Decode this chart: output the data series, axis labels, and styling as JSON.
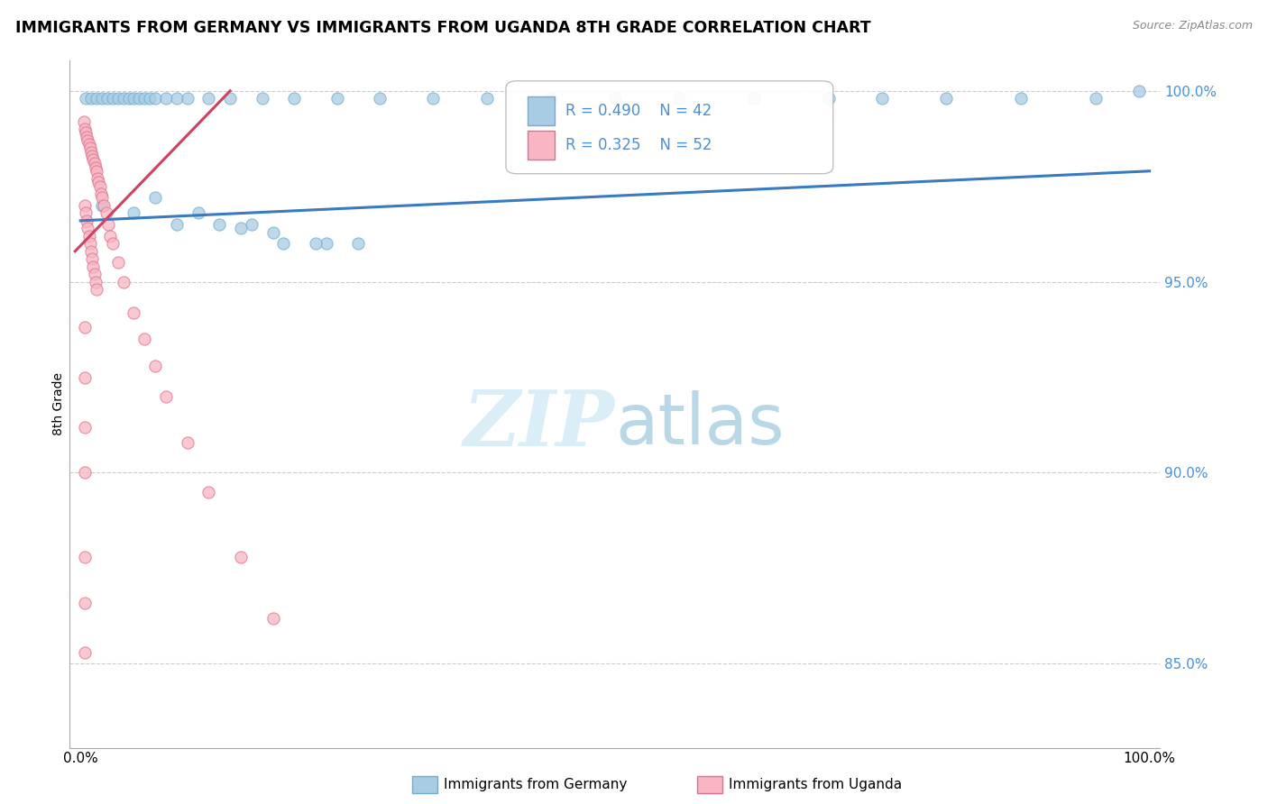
{
  "title": "IMMIGRANTS FROM GERMANY VS IMMIGRANTS FROM UGANDA 8TH GRADE CORRELATION CHART",
  "source": "Source: ZipAtlas.com",
  "ylabel": "8th Grade",
  "R_blue": 0.49,
  "N_blue": 42,
  "R_pink": 0.325,
  "N_pink": 52,
  "blue_color": "#a8cce4",
  "blue_edge_color": "#6aaed6",
  "pink_color": "#f7b6c2",
  "pink_edge_color": "#e07090",
  "blue_line_color": "#3a7abf",
  "pink_line_color": "#d04060",
  "legend_label_blue": "Immigrants from Germany",
  "legend_label_pink": "Immigrants from Uganda",
  "watermark_color": "#daeef7",
  "grid_color": "#cccccc",
  "ytick_color": "#4a90d9",
  "blue_x": [
    0.005,
    0.01,
    0.015,
    0.02,
    0.025,
    0.03,
    0.035,
    0.04,
    0.045,
    0.05,
    0.055,
    0.06,
    0.065,
    0.07,
    0.08,
    0.09,
    0.1,
    0.11,
    0.12,
    0.13,
    0.14,
    0.16,
    0.18,
    0.2,
    0.22,
    0.24,
    0.27,
    0.3,
    0.35,
    0.4,
    0.45,
    0.5,
    0.55,
    0.6,
    0.65,
    0.7,
    0.75,
    0.8,
    0.85,
    0.9,
    0.95,
    0.99
  ],
  "blue_y": [
    0.99,
    0.99,
    0.99,
    0.99,
    0.99,
    0.99,
    0.99,
    0.99,
    0.99,
    0.99,
    0.99,
    0.99,
    0.99,
    0.99,
    0.99,
    0.99,
    0.99,
    0.99,
    0.99,
    0.99,
    0.99,
    0.99,
    0.99,
    0.99,
    0.99,
    0.99,
    0.99,
    0.99,
    0.99,
    0.99,
    0.99,
    0.99,
    0.99,
    0.99,
    0.99,
    0.99,
    0.99,
    0.99,
    0.99,
    0.99,
    0.99,
    1.0
  ],
  "blue_x_scatter": [
    0.01,
    0.02,
    0.03,
    0.04,
    0.05,
    0.06,
    0.07,
    0.08,
    0.09,
    0.1,
    0.11,
    0.12,
    0.14,
    0.15,
    0.17,
    0.19,
    0.22,
    0.25,
    0.3
  ],
  "blue_y_scatter": [
    0.97,
    0.968,
    0.972,
    0.965,
    0.968,
    0.97,
    0.967,
    0.97,
    0.972,
    0.968,
    0.965,
    0.97,
    0.967,
    0.972,
    0.969,
    0.965,
    0.96,
    0.968,
    0.96
  ],
  "pink_x": [
    0.003,
    0.004,
    0.005,
    0.006,
    0.007,
    0.008,
    0.009,
    0.01,
    0.011,
    0.012,
    0.013,
    0.014,
    0.015,
    0.016,
    0.017,
    0.018,
    0.019,
    0.02,
    0.022,
    0.024,
    0.026,
    0.028,
    0.03,
    0.033,
    0.036,
    0.04,
    0.045,
    0.05,
    0.06,
    0.07,
    0.003,
    0.003,
    0.003,
    0.003,
    0.003,
    0.003,
    0.003,
    0.003,
    0.003,
    0.003,
    0.08,
    0.1,
    0.12,
    0.15,
    0.17,
    0.003,
    0.003,
    0.003,
    0.003,
    0.003,
    0.003,
    0.003
  ],
  "pink_y": [
    0.99,
    0.988,
    0.987,
    0.986,
    0.985,
    0.984,
    0.983,
    0.981,
    0.98,
    0.979,
    0.978,
    0.977,
    0.976,
    0.975,
    0.974,
    0.973,
    0.972,
    0.971,
    0.969,
    0.967,
    0.965,
    0.963,
    0.961,
    0.958,
    0.955,
    0.95,
    0.945,
    0.94,
    0.932,
    0.924,
    0.968,
    0.963,
    0.958,
    0.953,
    0.948,
    0.943,
    0.938,
    0.933,
    0.928,
    0.922,
    0.915,
    0.9,
    0.885,
    0.87,
    0.862,
    0.91,
    0.905,
    0.9,
    0.895,
    0.89,
    0.885,
    0.88
  ],
  "blue_trend_x": [
    0.0,
    1.0
  ],
  "blue_trend_y": [
    0.965,
    0.978
  ],
  "pink_trend_x": [
    0.0,
    0.18
  ],
  "pink_trend_y": [
    0.96,
    0.997
  ],
  "ylim": [
    0.828,
    1.008
  ],
  "xlim": [
    -0.01,
    1.01
  ],
  "yticks": [
    0.85,
    0.9,
    0.95,
    1.0
  ],
  "ytick_labels": [
    "85.0%",
    "90.0%",
    "95.0%",
    "100.0%"
  ],
  "xtick_labels": [
    "0.0%",
    "100.0%"
  ]
}
